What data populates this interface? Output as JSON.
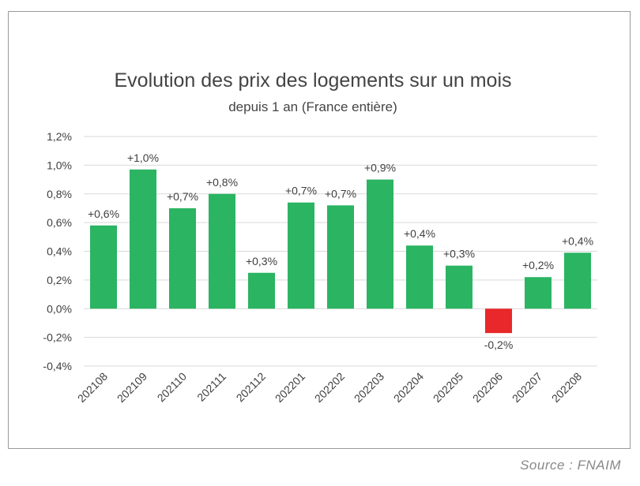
{
  "source": "Source : FNAIM",
  "colors": {
    "positive": "#2bb462",
    "negative": "#e8282a",
    "grid": "#d9d9d9",
    "text": "#404040"
  },
  "chart_data": {
    "type": "bar",
    "title": "Evolution des prix des logements sur un mois",
    "subtitle": "depuis 1 an (France entière)",
    "xlabel": "",
    "ylabel": "",
    "ylim": [
      -0.4,
      1.2
    ],
    "yticks": [
      1.2,
      1.0,
      0.8,
      0.6,
      0.4,
      0.2,
      0.0,
      -0.2,
      -0.4
    ],
    "ytick_labels": [
      "1,2%",
      "1,0%",
      "0,8%",
      "0,6%",
      "0,4%",
      "0,2%",
      "0,0%",
      "-0,2%",
      "-0,4%"
    ],
    "grid": true,
    "legend": "none",
    "categories": [
      "202108",
      "202109",
      "202110",
      "202111",
      "202112",
      "202201",
      "202202",
      "202203",
      "202204",
      "202205",
      "202206",
      "202207",
      "202208"
    ],
    "values": [
      0.58,
      0.97,
      0.7,
      0.8,
      0.25,
      0.74,
      0.72,
      0.9,
      0.44,
      0.3,
      -0.17,
      0.22,
      0.39
    ],
    "data_labels": [
      "+0,6%",
      "+1,0%",
      "+0,7%",
      "+0,8%",
      "+0,3%",
      "+0,7%",
      "+0,7%",
      "+0,9%",
      "+0,4%",
      "+0,3%",
      "-0,2%",
      "+0,2%",
      "+0,4%"
    ]
  }
}
